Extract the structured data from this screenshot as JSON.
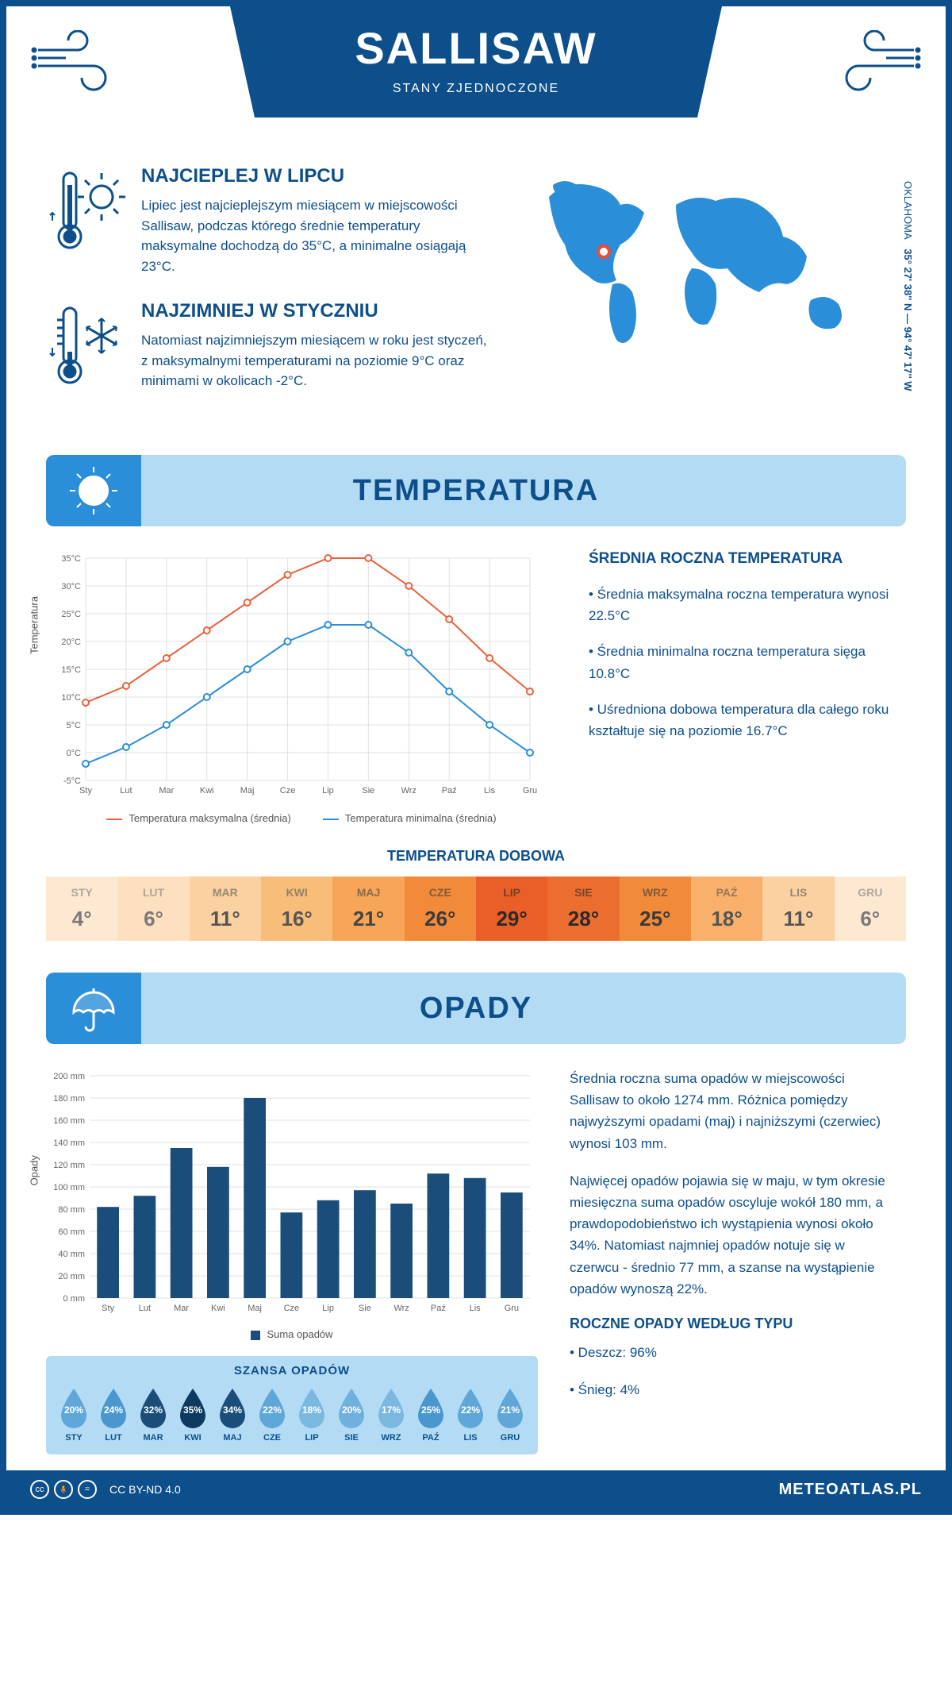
{
  "header": {
    "city": "SALLISAW",
    "country": "STANY ZJEDNOCZONE"
  },
  "location": {
    "state": "OKLAHOMA",
    "coords": "35° 27' 38'' N — 94° 47' 17'' W"
  },
  "facts": {
    "hot": {
      "title": "NAJCIEPLEJ W LIPCU",
      "text": "Lipiec jest najcieplejszym miesiącem w miejscowości Sallisaw, podczas którego średnie temperatury maksymalne dochodzą do 35°C, a minimalne osiągają 23°C."
    },
    "cold": {
      "title": "NAJZIMNIEJ W STYCZNIU",
      "text": "Natomiast najzimniejszym miesiącem w roku jest styczeń, z maksymalnymi temperaturami na poziomie 9°C oraz minimami w okolicach -2°C."
    }
  },
  "sections": {
    "temp": "TEMPERATURA",
    "precip": "OPADY"
  },
  "temp_chart": {
    "type": "line",
    "months": [
      "Sty",
      "Lut",
      "Mar",
      "Kwi",
      "Maj",
      "Cze",
      "Lip",
      "Sie",
      "Wrz",
      "Paź",
      "Lis",
      "Gru"
    ],
    "max_values": [
      9,
      12,
      17,
      22,
      27,
      32,
      35,
      35,
      30,
      24,
      17,
      11
    ],
    "min_values": [
      -2,
      1,
      5,
      10,
      15,
      20,
      23,
      23,
      18,
      11,
      5,
      0
    ],
    "max_color": "#e8623d",
    "min_color": "#2a8ed8",
    "ylim": [
      -5,
      35
    ],
    "ytick_step": 5,
    "y_axis_label": "Temperatura",
    "legend_max": "Temperatura maksymalna (średnia)",
    "legend_min": "Temperatura minimalna (średnia)",
    "grid_color": "#e0e0e0",
    "background": "#ffffff",
    "line_width": 2,
    "marker": "circle",
    "marker_size": 4
  },
  "temp_info": {
    "title": "ŚREDNIA ROCZNA TEMPERATURA",
    "bullets": [
      "• Średnia maksymalna roczna temperatura wynosi 22.5°C",
      "• Średnia minimalna roczna temperatura sięga 10.8°C",
      "• Uśredniona dobowa temperatura dla całego roku kształtuje się na poziomie 16.7°C"
    ]
  },
  "daily_temp": {
    "title": "TEMPERATURA DOBOWA",
    "months": [
      "STY",
      "LUT",
      "MAR",
      "KWI",
      "MAJ",
      "CZE",
      "LIP",
      "SIE",
      "WRZ",
      "PAŹ",
      "LIS",
      "GRU"
    ],
    "values": [
      "4°",
      "6°",
      "11°",
      "16°",
      "21°",
      "26°",
      "29°",
      "28°",
      "25°",
      "18°",
      "11°",
      "6°"
    ],
    "colors": [
      "#fde9d2",
      "#fde0c0",
      "#fbd1a1",
      "#f9bd7a",
      "#f7a556",
      "#f18b3a",
      "#ea5f27",
      "#ec6e2e",
      "#f18b3a",
      "#f9b06a",
      "#fbd1a1",
      "#fde9d2"
    ],
    "text_colors": [
      "#7a7a7a",
      "#7a7a7a",
      "#555",
      "#555",
      "#444",
      "#3a3a3a",
      "#2a2a2a",
      "#2a2a2a",
      "#3a3a3a",
      "#555",
      "#555",
      "#7a7a7a"
    ]
  },
  "precip_chart": {
    "type": "bar",
    "months": [
      "Sty",
      "Lut",
      "Mar",
      "Kwi",
      "Maj",
      "Cze",
      "Lip",
      "Sie",
      "Wrz",
      "Paź",
      "Lis",
      "Gru"
    ],
    "values": [
      82,
      92,
      135,
      118,
      180,
      77,
      88,
      97,
      85,
      112,
      108,
      95
    ],
    "bar_color": "#1a4d7a",
    "ylim": [
      0,
      200
    ],
    "ytick_step": 20,
    "y_axis_label": "Opady",
    "legend": "Suma opadów",
    "grid_color": "#e0e0e0",
    "bar_width": 0.6
  },
  "precip_info": {
    "p1": "Średnia roczna suma opadów w miejscowości Sallisaw to około 1274 mm. Różnica pomiędzy najwyższymi opadami (maj) i najniższymi (czerwiec) wynosi 103 mm.",
    "p2": "Najwięcej opadów pojawia się w maju, w tym okresie miesięczna suma opadów oscyluje wokół 180 mm, a prawdopodobieństwo ich wystąpienia wynosi około 34%. Natomiast najmniej opadów notuje się w czerwcu - średnio 77 mm, a szanse na wystąpienie opadów wynoszą 22%."
  },
  "precip_chance": {
    "title": "SZANSA OPADÓW",
    "months": [
      "STY",
      "LUT",
      "MAR",
      "KWI",
      "MAJ",
      "CZE",
      "LIP",
      "SIE",
      "WRZ",
      "PAŹ",
      "LIS",
      "GRU"
    ],
    "values": [
      "20%",
      "24%",
      "32%",
      "35%",
      "34%",
      "22%",
      "18%",
      "20%",
      "17%",
      "25%",
      "22%",
      "21%"
    ],
    "drop_colors": [
      "#5fa7d8",
      "#4a97cf",
      "#1a4d7a",
      "#0d3a5e",
      "#1a4d7a",
      "#5fa7d8",
      "#7bb8e0",
      "#6fb0dc",
      "#7bb8e0",
      "#4a97cf",
      "#5fa7d8",
      "#5fa7d8"
    ]
  },
  "precip_type": {
    "title": "ROCZNE OPADY WEDŁUG TYPU",
    "rain": "• Deszcz: 96%",
    "snow": "• Śnieg: 4%"
  },
  "footer": {
    "license": "CC BY-ND 4.0",
    "site": "METEOATLAS.PL"
  }
}
